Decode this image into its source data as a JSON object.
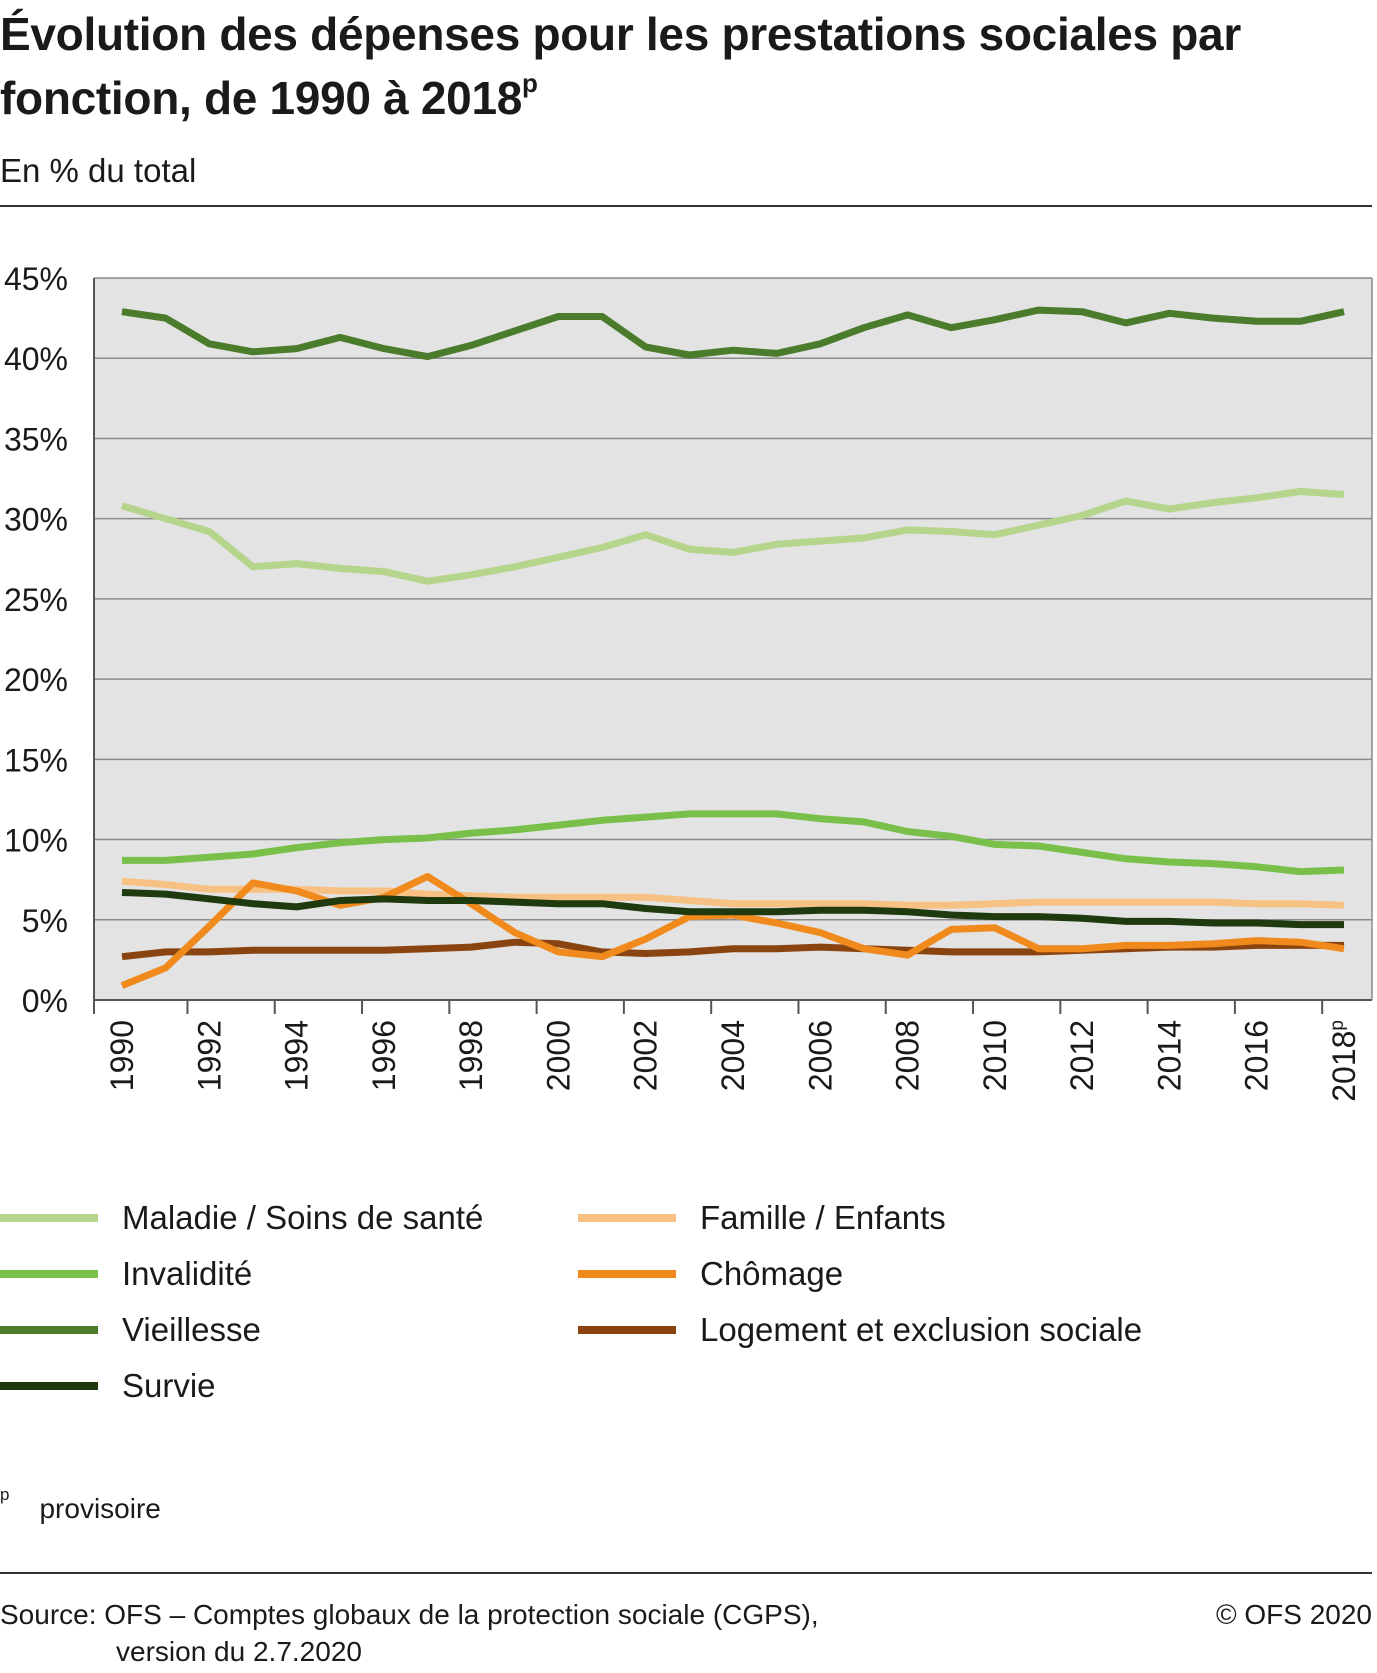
{
  "title_main": "Évolution des dépenses pour les prestations sociales par fonction, de 1990 à 2018",
  "title_sup": "p",
  "subtitle": "En % du total",
  "footnote_mark": "p",
  "footnote_text": "provisoire",
  "source_line1": "Source: OFS – Comptes globaux de la protection sociale (CGPS),",
  "source_line2": "version du 2.7.2020",
  "copyright": "© OFS 2020",
  "chart_data": {
    "type": "line",
    "ylim": [
      0,
      45
    ],
    "yticks": [
      "0%",
      "5%",
      "10%",
      "15%",
      "20%",
      "25%",
      "30%",
      "35%",
      "40%",
      "45%"
    ],
    "x": [
      1990,
      1991,
      1992,
      1993,
      1994,
      1995,
      1996,
      1997,
      1998,
      1999,
      2000,
      2001,
      2002,
      2003,
      2004,
      2005,
      2006,
      2007,
      2008,
      2009,
      2010,
      2011,
      2012,
      2013,
      2014,
      2015,
      2016,
      2017,
      2018
    ],
    "x_tick_labels": [
      "1990",
      "1992",
      "1994",
      "1996",
      "1998",
      "2000",
      "2002",
      "2004",
      "2006",
      "2008",
      "2010",
      "2012",
      "2014",
      "2016",
      "2018"
    ],
    "x_tick_last_suffix": "p",
    "grid": true,
    "legend_position": "bottom",
    "series": [
      {
        "name": "Maladie / Soins de santé",
        "color": "#b5d48c",
        "values": [
          30.8,
          30.0,
          29.2,
          27.0,
          27.2,
          26.9,
          26.7,
          26.1,
          26.5,
          27.0,
          27.6,
          28.2,
          29.0,
          28.1,
          27.9,
          28.4,
          28.6,
          28.8,
          29.3,
          29.2,
          29.0,
          29.6,
          30.2,
          31.1,
          30.6,
          31.0,
          31.3,
          31.7,
          31.5
        ]
      },
      {
        "name": "Invalidité",
        "color": "#78c04a",
        "values": [
          8.7,
          8.7,
          8.9,
          9.1,
          9.5,
          9.8,
          10.0,
          10.1,
          10.4,
          10.6,
          10.9,
          11.2,
          11.4,
          11.6,
          11.6,
          11.6,
          11.3,
          11.1,
          10.5,
          10.2,
          9.7,
          9.6,
          9.2,
          8.8,
          8.6,
          8.5,
          8.3,
          8.0,
          8.1
        ]
      },
      {
        "name": "Vieillesse",
        "color": "#4a7c2c",
        "values": [
          42.9,
          42.5,
          40.9,
          40.4,
          40.6,
          41.3,
          40.6,
          40.1,
          40.8,
          41.7,
          42.6,
          42.6,
          40.7,
          40.2,
          40.5,
          40.3,
          40.9,
          41.9,
          42.7,
          41.9,
          42.4,
          43.0,
          42.9,
          42.2,
          42.8,
          42.5,
          42.3,
          42.3,
          42.9
        ]
      },
      {
        "name": "Survie",
        "color": "#1f3a0f",
        "values": [
          6.7,
          6.6,
          6.3,
          6.0,
          5.8,
          6.2,
          6.3,
          6.2,
          6.2,
          6.1,
          6.0,
          6.0,
          5.7,
          5.5,
          5.5,
          5.5,
          5.6,
          5.6,
          5.5,
          5.3,
          5.2,
          5.2,
          5.1,
          4.9,
          4.9,
          4.8,
          4.8,
          4.7,
          4.7
        ]
      },
      {
        "name": "Famille / Enfants",
        "color": "#f7c184",
        "values": [
          7.4,
          7.2,
          6.9,
          6.9,
          6.9,
          6.8,
          6.8,
          6.6,
          6.5,
          6.4,
          6.4,
          6.4,
          6.4,
          6.2,
          6.0,
          6.0,
          6.0,
          6.0,
          5.9,
          5.9,
          6.0,
          6.1,
          6.1,
          6.1,
          6.1,
          6.1,
          6.0,
          6.0,
          5.9
        ]
      },
      {
        "name": "Chômage",
        "color": "#f08a1c",
        "values": [
          0.9,
          2.0,
          4.6,
          7.3,
          6.8,
          5.9,
          6.4,
          7.7,
          6.0,
          4.2,
          3.0,
          2.7,
          3.8,
          5.2,
          5.3,
          4.8,
          4.2,
          3.2,
          2.8,
          4.4,
          4.5,
          3.2,
          3.2,
          3.4,
          3.4,
          3.5,
          3.7,
          3.6,
          3.2
        ]
      },
      {
        "name": "Logement et exclusion sociale",
        "color": "#8a4410",
        "values": [
          2.7,
          3.0,
          3.0,
          3.1,
          3.1,
          3.1,
          3.1,
          3.2,
          3.3,
          3.6,
          3.5,
          3.0,
          2.9,
          3.0,
          3.2,
          3.2,
          3.3,
          3.2,
          3.1,
          3.0,
          3.0,
          3.0,
          3.1,
          3.2,
          3.3,
          3.3,
          3.4,
          3.4,
          3.4
        ]
      }
    ]
  }
}
